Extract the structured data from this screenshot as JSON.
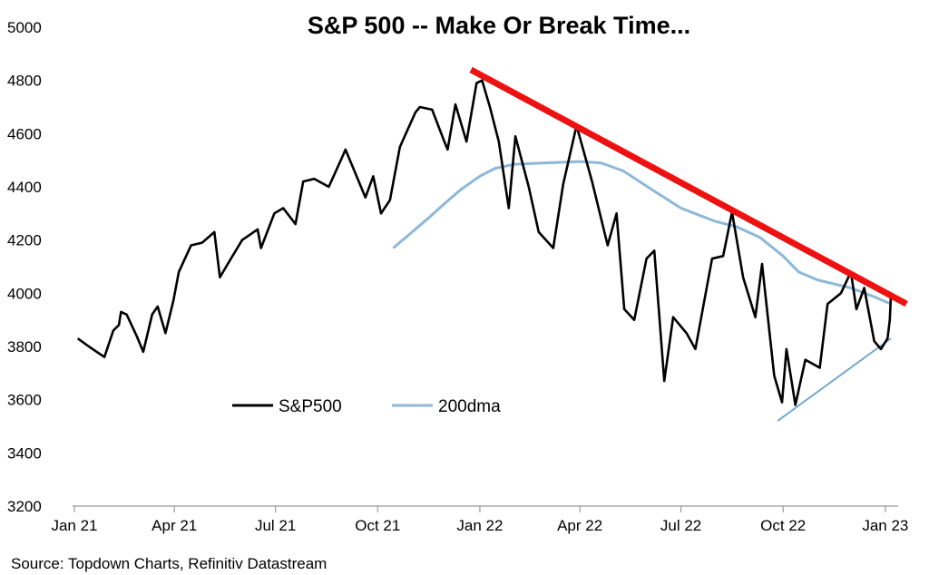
{
  "chart_data": {
    "type": "line",
    "title": "S&P 500 -- Make Or Break Time...",
    "source": "Source: Topdown Charts, Refinitiv Datastream",
    "xlabel": "",
    "ylabel": "",
    "ylim": [
      3200,
      5000
    ],
    "y_ticks": [
      3200,
      3400,
      3600,
      3800,
      4000,
      4200,
      4400,
      4600,
      4800,
      5000
    ],
    "x_range": [
      "2021-01-01",
      "2023-01-06"
    ],
    "x_ticks": [
      {
        "date": "2021-01-01",
        "label": "Jan 21"
      },
      {
        "date": "2021-04-01",
        "label": "Apr 21"
      },
      {
        "date": "2021-07-01",
        "label": "Jul 21"
      },
      {
        "date": "2021-10-01",
        "label": "Oct 21"
      },
      {
        "date": "2022-01-01",
        "label": "Jan 22"
      },
      {
        "date": "2022-04-01",
        "label": "Apr 22"
      },
      {
        "date": "2022-07-01",
        "label": "Jul 22"
      },
      {
        "date": "2022-10-01",
        "label": "Oct 22"
      },
      {
        "date": "2023-01-01",
        "label": "Jan 23"
      }
    ],
    "legend": {
      "position": "lower-left"
    },
    "colors": {
      "sp500": "#000000",
      "dma": "#8db8d8",
      "resistance": "#ee1111",
      "support": "#6aa2cc"
    },
    "series": [
      {
        "name": "S&P500",
        "points": [
          [
            "2021-01-04",
            3830
          ],
          [
            "2021-01-14",
            3800
          ],
          [
            "2021-01-28",
            3760
          ],
          [
            "2021-02-05",
            3860
          ],
          [
            "2021-02-10",
            3880
          ],
          [
            "2021-02-12",
            3930
          ],
          [
            "2021-02-17",
            3920
          ],
          [
            "2021-02-26",
            3840
          ],
          [
            "2021-03-04",
            3780
          ],
          [
            "2021-03-12",
            3920
          ],
          [
            "2021-03-17",
            3950
          ],
          [
            "2021-03-24",
            3850
          ],
          [
            "2021-03-31",
            3970
          ],
          [
            "2021-04-05",
            4080
          ],
          [
            "2021-04-16",
            4180
          ],
          [
            "2021-04-26",
            4190
          ],
          [
            "2021-05-07",
            4230
          ],
          [
            "2021-05-12",
            4060
          ],
          [
            "2021-05-19",
            4110
          ],
          [
            "2021-06-01",
            4200
          ],
          [
            "2021-06-15",
            4240
          ],
          [
            "2021-06-18",
            4170
          ],
          [
            "2021-06-30",
            4300
          ],
          [
            "2021-07-08",
            4320
          ],
          [
            "2021-07-19",
            4260
          ],
          [
            "2021-07-26",
            4420
          ],
          [
            "2021-08-05",
            4430
          ],
          [
            "2021-08-18",
            4400
          ],
          [
            "2021-08-31",
            4520
          ],
          [
            "2021-09-02",
            4540
          ],
          [
            "2021-09-10",
            4460
          ],
          [
            "2021-09-20",
            4360
          ],
          [
            "2021-09-27",
            4440
          ],
          [
            "2021-10-04",
            4300
          ],
          [
            "2021-10-12",
            4350
          ],
          [
            "2021-10-21",
            4550
          ],
          [
            "2021-11-04",
            4680
          ],
          [
            "2021-11-08",
            4700
          ],
          [
            "2021-11-19",
            4690
          ],
          [
            "2021-11-30",
            4570
          ],
          [
            "2021-12-03",
            4540
          ],
          [
            "2021-12-10",
            4710
          ],
          [
            "2021-12-20",
            4570
          ],
          [
            "2021-12-29",
            4790
          ],
          [
            "2022-01-03",
            4800
          ],
          [
            "2022-01-10",
            4700
          ],
          [
            "2022-01-18",
            4570
          ],
          [
            "2022-01-27",
            4320
          ],
          [
            "2022-02-02",
            4590
          ],
          [
            "2022-02-14",
            4400
          ],
          [
            "2022-02-23",
            4230
          ],
          [
            "2022-03-08",
            4170
          ],
          [
            "2022-03-17",
            4410
          ],
          [
            "2022-03-29",
            4630
          ],
          [
            "2022-04-12",
            4420
          ],
          [
            "2022-04-26",
            4180
          ],
          [
            "2022-05-04",
            4300
          ],
          [
            "2022-05-11",
            3940
          ],
          [
            "2022-05-20",
            3900
          ],
          [
            "2022-05-31",
            4130
          ],
          [
            "2022-06-07",
            4160
          ],
          [
            "2022-06-16",
            3670
          ],
          [
            "2022-06-24",
            3910
          ],
          [
            "2022-07-06",
            3850
          ],
          [
            "2022-07-14",
            3790
          ],
          [
            "2022-07-29",
            4130
          ],
          [
            "2022-08-08",
            4140
          ],
          [
            "2022-08-16",
            4305
          ],
          [
            "2022-08-26",
            4060
          ],
          [
            "2022-09-06",
            3910
          ],
          [
            "2022-09-12",
            4110
          ],
          [
            "2022-09-23",
            3690
          ],
          [
            "2022-09-30",
            3590
          ],
          [
            "2022-10-04",
            3790
          ],
          [
            "2022-10-12",
            3580
          ],
          [
            "2022-10-21",
            3750
          ],
          [
            "2022-11-03",
            3720
          ],
          [
            "2022-11-10",
            3960
          ],
          [
            "2022-11-22",
            4000
          ],
          [
            "2022-12-01",
            4080
          ],
          [
            "2022-12-06",
            3940
          ],
          [
            "2022-12-13",
            4020
          ],
          [
            "2022-12-22",
            3820
          ],
          [
            "2022-12-28",
            3790
          ],
          [
            "2023-01-03",
            3830
          ],
          [
            "2023-01-05",
            3900
          ],
          [
            "2023-01-06",
            3990
          ]
        ]
      },
      {
        "name": "200dma",
        "points": [
          [
            "2021-10-15",
            4170
          ],
          [
            "2021-11-01",
            4230
          ],
          [
            "2021-11-15",
            4280
          ],
          [
            "2021-12-01",
            4340
          ],
          [
            "2021-12-15",
            4390
          ],
          [
            "2022-01-01",
            4440
          ],
          [
            "2022-01-15",
            4470
          ],
          [
            "2022-02-01",
            4485
          ],
          [
            "2022-03-01",
            4490
          ],
          [
            "2022-04-01",
            4495
          ],
          [
            "2022-04-20",
            4490
          ],
          [
            "2022-05-10",
            4460
          ],
          [
            "2022-06-01",
            4400
          ],
          [
            "2022-07-01",
            4320
          ],
          [
            "2022-08-01",
            4270
          ],
          [
            "2022-08-20",
            4250
          ],
          [
            "2022-09-10",
            4210
          ],
          [
            "2022-10-01",
            4140
          ],
          [
            "2022-10-15",
            4080
          ],
          [
            "2022-11-01",
            4050
          ],
          [
            "2022-12-01",
            4020
          ],
          [
            "2022-12-20",
            3990
          ],
          [
            "2023-01-06",
            3960
          ]
        ]
      },
      {
        "name": "Resistance trendline",
        "points": [
          [
            "2021-12-24",
            4840
          ],
          [
            "2023-01-20",
            3960
          ]
        ]
      },
      {
        "name": "Support trendline",
        "points": [
          [
            "2022-09-26",
            3520
          ],
          [
            "2023-01-06",
            3830
          ]
        ]
      }
    ]
  }
}
